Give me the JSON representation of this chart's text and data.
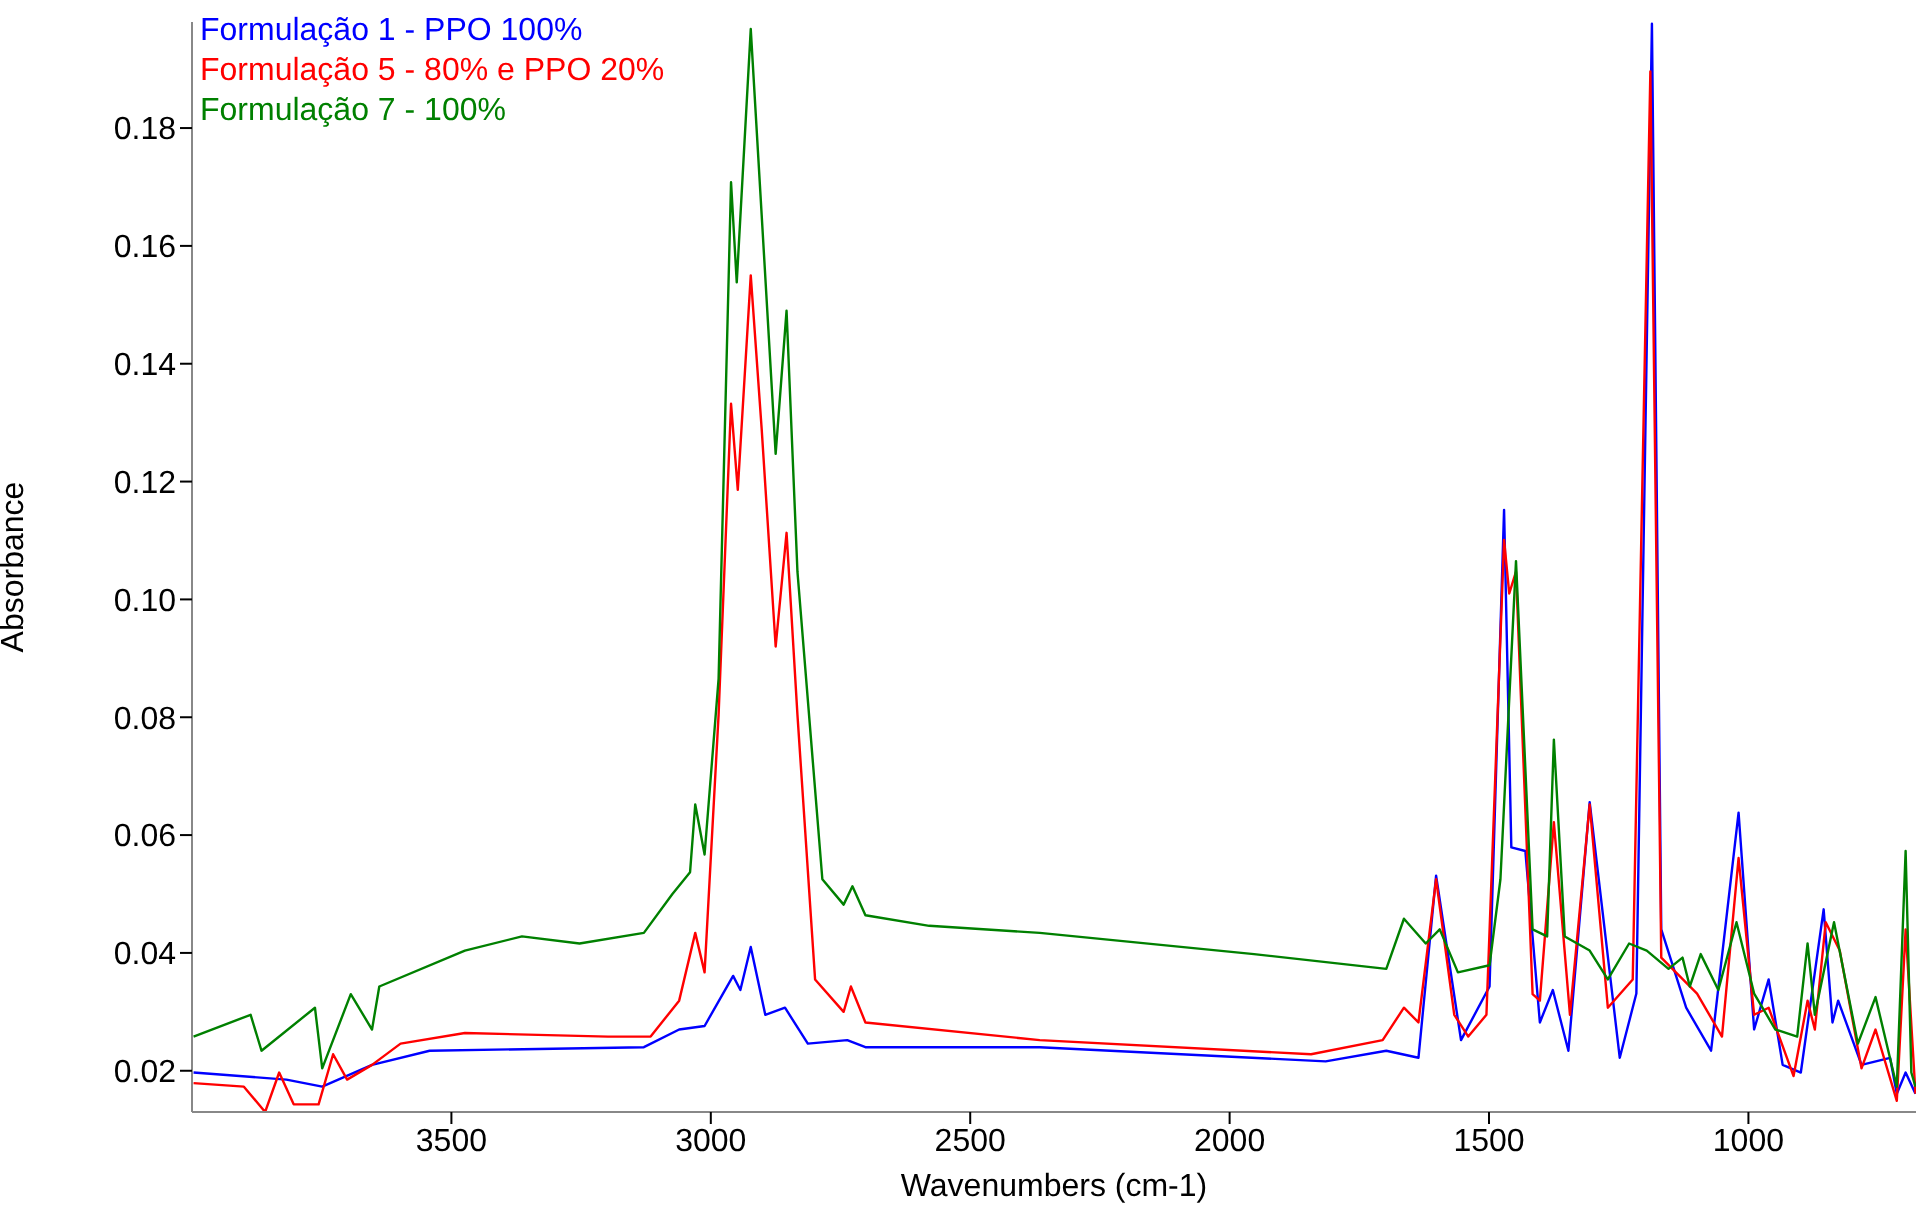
{
  "chart_data": {
    "type": "line",
    "xlabel": "Wavenumbers (cm-1)",
    "ylabel": "Absorbance",
    "xlim": [
      4000,
      677
    ],
    "xticks": [
      3500,
      3000,
      2500,
      2000,
      1500,
      1000
    ],
    "ylim": [
      0.013,
      0.198
    ],
    "yticks": [
      0.02,
      0.04,
      0.06,
      0.08,
      {
        "value": 0.1,
        "label": "0.10"
      },
      0.12,
      0.14,
      0.16,
      0.18
    ],
    "legend": "top left",
    "line_style": "solid",
    "marker": "none",
    "series": [
      {
        "name": "Formulação 1 - PPO 100%",
        "color": "#0000ff",
        "x": [
          3997,
          3818,
          3749,
          3653,
          3542,
          3129,
          3061,
          3012,
          2957,
          2943,
          2923,
          2895,
          2857,
          2813,
          2737,
          2702,
          2366,
          1815,
          1698,
          1636,
          1602,
          1554,
          1499,
          1471,
          1457,
          1430,
          1402,
          1377,
          1347,
          1306,
          1248,
          1216,
          1186,
          1168,
          1120,
          1072,
          1019,
          989,
          961,
          934,
          899,
          855,
          838,
          827,
          782,
          727,
          714,
          697,
          678
        ],
        "values": [
          0.0197,
          0.0185,
          0.0173,
          0.021,
          0.0234,
          0.024,
          0.027,
          0.0276,
          0.0361,
          0.0337,
          0.041,
          0.0295,
          0.0307,
          0.0246,
          0.0252,
          0.024,
          0.024,
          0.0216,
          0.0234,
          0.0222,
          0.0531,
          0.0252,
          0.0343,
          0.1152,
          0.0579,
          0.0573,
          0.0282,
          0.0337,
          0.0234,
          0.0656,
          0.0222,
          0.0331,
          0.1977,
          0.044,
          0.0307,
          0.0234,
          0.0638,
          0.027,
          0.0355,
          0.021,
          0.0197,
          0.0474,
          0.0282,
          0.0319,
          0.021,
          0.0222,
          0.0161,
          0.0197,
          0.0161
        ]
      },
      {
        "name": "Formulação 5 - 80% e PPO 20%",
        "color": "#ff0000",
        "x": [
          3997,
          3900,
          3859,
          3832,
          3804,
          3756,
          3728,
          3701,
          3653,
          3598,
          3474,
          3198,
          3116,
          3061,
          3030,
          3012,
          2985,
          2961,
          2948,
          2923,
          2902,
          2875,
          2854,
          2833,
          2799,
          2744,
          2730,
          2702,
          2366,
          1843,
          1705,
          1664,
          1636,
          1602,
          1567,
          1540,
          1505,
          1471,
          1461,
          1448,
          1416,
          1402,
          1375,
          1344,
          1306,
          1271,
          1223,
          1189,
          1168,
          1099,
          1051,
          1019,
          989,
          961,
          913,
          886,
          872,
          851,
          824,
          782,
          755,
          714,
          697,
          678
        ],
        "values": [
          0.0179,
          0.0173,
          0.013,
          0.0197,
          0.0143,
          0.0143,
          0.0228,
          0.0185,
          0.021,
          0.0246,
          0.0264,
          0.0258,
          0.0258,
          0.0319,
          0.0434,
          0.0367,
          0.0804,
          0.1332,
          0.1186,
          0.155,
          0.129,
          0.092,
          0.1113,
          0.0804,
          0.0355,
          0.03,
          0.0343,
          0.0282,
          0.0252,
          0.0228,
          0.0252,
          0.0307,
          0.0282,
          0.0525,
          0.0295,
          0.0258,
          0.0295,
          0.1101,
          0.101,
          0.1047,
          0.033,
          0.0319,
          0.0622,
          0.0295,
          0.0652,
          0.0307,
          0.0355,
          0.1896,
          0.0392,
          0.0331,
          0.0258,
          0.0561,
          0.0295,
          0.0307,
          0.0191,
          0.0319,
          0.027,
          0.0452,
          0.0404,
          0.0204,
          0.027,
          0.0149,
          0.044,
          0.0161
        ]
      },
      {
        "name": "Formulação 7 - 100%",
        "color": "#008000",
        "x": [
          3997,
          3887,
          3866,
          3763,
          3749,
          3694,
          3653,
          3639,
          3474,
          3364,
          3253,
          3129,
          3074,
          3040,
          3030,
          3012,
          2985,
          2961,
          2950,
          2923,
          2902,
          2875,
          2854,
          2833,
          2785,
          2744,
          2727,
          2702,
          2579,
          2366,
          1953,
          1698,
          1664,
          1622,
          1595,
          1560,
          1499,
          1478,
          1448,
          1416,
          1388,
          1375,
          1354,
          1306,
          1271,
          1230,
          1196,
          1154,
          1127,
          1113,
          1092,
          1058,
          1023,
          989,
          948,
          906,
          886,
          872,
          835,
          789,
          755,
          714,
          697,
          686,
          678
        ],
        "values": [
          0.0258,
          0.0295,
          0.0234,
          0.0307,
          0.0204,
          0.033,
          0.027,
          0.0343,
          0.0404,
          0.0428,
          0.0416,
          0.0434,
          0.05,
          0.0537,
          0.0652,
          0.0567,
          0.0865,
          0.1708,
          0.1538,
          0.1968,
          0.1653,
          0.1247,
          0.149,
          0.1047,
          0.0525,
          0.0482,
          0.0513,
          0.0464,
          0.0446,
          0.0434,
          0.0398,
          0.0373,
          0.0458,
          0.0416,
          0.044,
          0.0367,
          0.0379,
          0.0525,
          0.1065,
          0.044,
          0.0428,
          0.0762,
          0.0428,
          0.0404,
          0.0355,
          0.0416,
          0.0404,
          0.0373,
          0.0392,
          0.0343,
          0.0398,
          0.0337,
          0.0452,
          0.0331,
          0.027,
          0.0258,
          0.0416,
          0.0295,
          0.0452,
          0.0246,
          0.0325,
          0.0173,
          0.0573,
          0.0197,
          0.0173
        ]
      }
    ]
  }
}
